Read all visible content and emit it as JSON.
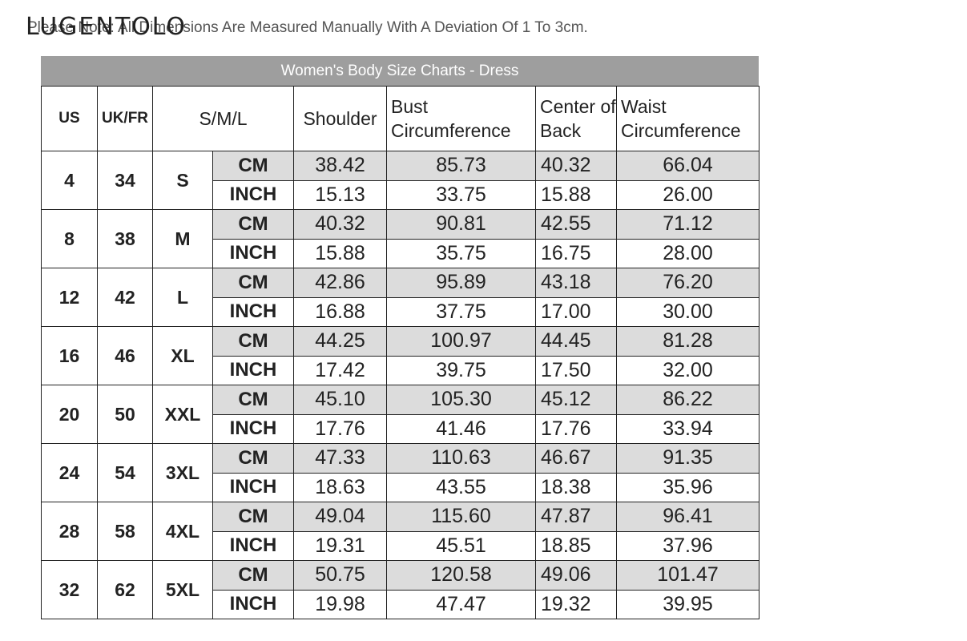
{
  "header": {
    "logo": "LUGENTOLO",
    "notice": "Please Note: All Dimensions Are Measured Manually With A Deviation Of 1 To 3cm."
  },
  "chart": {
    "title": "Women's Body Size Charts - Dress",
    "columns": [
      "US",
      "UK/FR",
      "S/M/L",
      "Shoulder",
      "Bust Circumference",
      "Center of Back",
      "Waist Circumference"
    ],
    "rows": [
      {
        "us": "4",
        "ukfr": "34",
        "size": "S",
        "cm": [
          "38.42",
          "85.73",
          "40.32",
          "66.04"
        ],
        "inch": [
          "15.13",
          "33.75",
          "15.88",
          "26.00"
        ]
      },
      {
        "us": "8",
        "ukfr": "38",
        "size": "M",
        "cm": [
          "40.32",
          "90.81",
          "42.55",
          "71.12"
        ],
        "inch": [
          "15.88",
          "35.75",
          "16.75",
          "28.00"
        ]
      },
      {
        "us": "12",
        "ukfr": "42",
        "size": "L",
        "cm": [
          "42.86",
          "95.89",
          "43.18",
          "76.20"
        ],
        "inch": [
          "16.88",
          "37.75",
          "17.00",
          "30.00"
        ]
      },
      {
        "us": "16",
        "ukfr": "46",
        "size": "XL",
        "cm": [
          "44.25",
          "100.97",
          "44.45",
          "81.28"
        ],
        "inch": [
          "17.42",
          "39.75",
          "17.50",
          "32.00"
        ]
      },
      {
        "us": "20",
        "ukfr": "50",
        "size": "XXL",
        "cm": [
          "45.10",
          "105.30",
          "45.12",
          "86.22"
        ],
        "inch": [
          "17.76",
          "41.46",
          "17.76",
          "33.94"
        ]
      },
      {
        "us": "24",
        "ukfr": "54",
        "size": "3XL",
        "cm": [
          "47.33",
          "110.63",
          "46.67",
          "91.35"
        ],
        "inch": [
          "18.63",
          "43.55",
          "18.38",
          "35.96"
        ]
      },
      {
        "us": "28",
        "ukfr": "58",
        "size": "4XL",
        "cm": [
          "49.04",
          "115.60",
          "47.87",
          "96.41"
        ],
        "inch": [
          "19.31",
          "45.51",
          "18.85",
          "37.96"
        ]
      },
      {
        "us": "32",
        "ukfr": "62",
        "size": "5XL",
        "cm": [
          "50.75",
          "120.58",
          "49.06",
          "101.47"
        ],
        "inch": [
          "19.98",
          "47.47",
          "19.32",
          "39.95"
        ]
      }
    ],
    "unit_labels": {
      "cm": "CM",
      "inch": "INCH"
    }
  }
}
